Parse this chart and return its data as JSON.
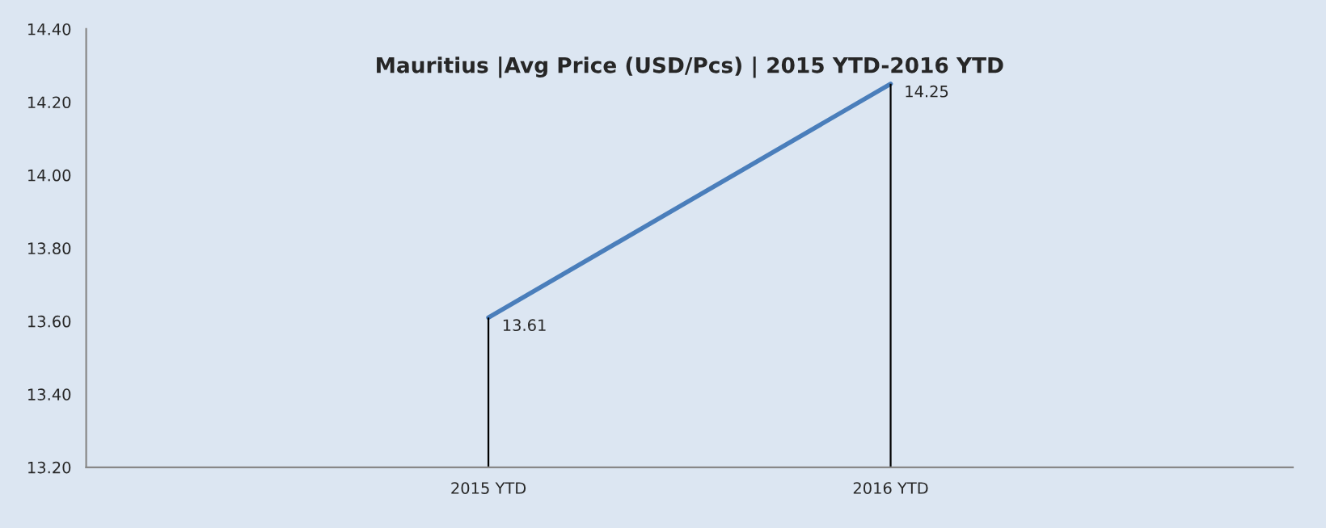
{
  "chart_data": {
    "type": "line",
    "title": "Mauritius |Avg Price (USD/Pcs) | 2015 YTD-2016 YTD",
    "categories": [
      "2015 YTD",
      "2016 YTD"
    ],
    "series": [
      {
        "color": "#4a7ebb",
        "values": [
          13.61,
          14.25
        ]
      }
    ],
    "data_labels": true,
    "ylim": [
      13.2,
      14.4
    ],
    "yticks": [
      {
        "value": 13.2,
        "label": "13.20"
      },
      {
        "value": 13.4,
        "label": "13.40"
      },
      {
        "value": 13.6,
        "label": "13.60"
      },
      {
        "value": 13.8,
        "label": "13.80"
      },
      {
        "value": 14.0,
        "label": "14.00"
      },
      {
        "value": 14.2,
        "label": "14.20"
      },
      {
        "value": 14.4,
        "label": "14.40"
      }
    ],
    "legend": false,
    "marker": "none",
    "line_style": "solid"
  }
}
